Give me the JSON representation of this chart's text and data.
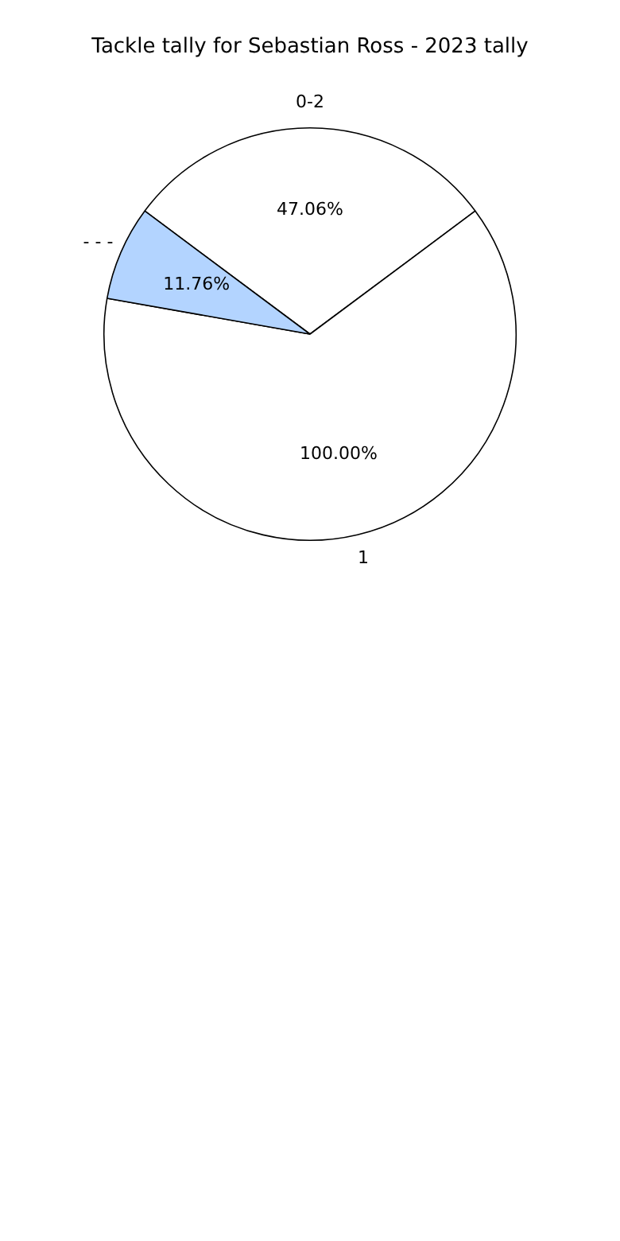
{
  "chart_data": {
    "type": "pie",
    "title": "Tackle tally for Sebastian Ross - 2023 tally",
    "categories": [
      "0-2",
      "1",
      "- - -"
    ],
    "values": [
      47.06,
      100,
      11.76
    ],
    "value_labels": [
      "47.06%",
      "100.00%",
      "11.76%"
    ],
    "colors": [
      "#ffffff",
      "#ffffff",
      "#b3d4ff"
    ],
    "legend": false
  }
}
